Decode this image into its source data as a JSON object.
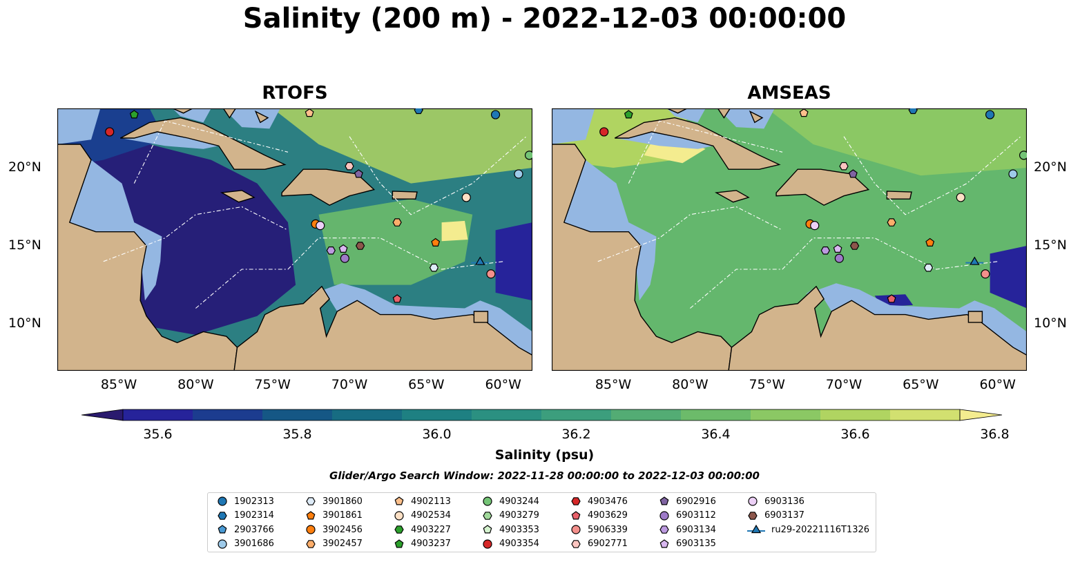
{
  "title": "Salinity (200 m) - 2022-12-03 00:00:00",
  "panels": [
    {
      "title": "RTOFS",
      "mode": "rtofs"
    },
    {
      "title": "AMSEAS",
      "mode": "amseas"
    }
  ],
  "longitude_ticks": [
    "85°W",
    "80°W",
    "75°W",
    "70°W",
    "65°W",
    "60°W"
  ],
  "latitude_ticks": [
    "20°N",
    "15°N",
    "10°N"
  ],
  "colorbar": {
    "label": "Salinity (psu)",
    "min": 35.5,
    "max": 36.9,
    "ticks": [
      "35.6",
      "35.8",
      "36.0",
      "36.2",
      "36.4",
      "36.6",
      "36.8"
    ],
    "colors": [
      "#2a1a6e",
      "#26239a",
      "#1c3c8f",
      "#155785",
      "#176c82",
      "#1e8082",
      "#2b9081",
      "#3c9e7d",
      "#53ac74",
      "#6cbb6a",
      "#8bc864",
      "#b0d461",
      "#d2e070",
      "#f4ec8f"
    ]
  },
  "search_window": "Glider/Argo Search Window: 2022-11-28 00:00:00 to 2022-12-03 00:00:00",
  "legend": [
    {
      "label": "1902313",
      "marker": "circle",
      "color": "#1f77b4"
    },
    {
      "label": "1902314",
      "marker": "hexagon",
      "color": "#1f77b4"
    },
    {
      "label": "2903766",
      "marker": "pentagon",
      "color": "#4a9ad4"
    },
    {
      "label": "3901686",
      "marker": "circle",
      "color": "#9ecae9"
    },
    {
      "label": "3901860",
      "marker": "hexagon",
      "color": "#deebf7"
    },
    {
      "label": "3901861",
      "marker": "pentagon",
      "color": "#ff7f0e"
    },
    {
      "label": "3902456",
      "marker": "circle",
      "color": "#ff7f0e"
    },
    {
      "label": "3902457",
      "marker": "hexagon",
      "color": "#fdae6b"
    },
    {
      "label": "4902113",
      "marker": "pentagon",
      "color": "#fdc08c"
    },
    {
      "label": "4902534",
      "marker": "circle",
      "color": "#fde0c5"
    },
    {
      "label": "4903227",
      "marker": "hexagon",
      "color": "#2ca02c"
    },
    {
      "label": "4903237",
      "marker": "pentagon",
      "color": "#2ca02c"
    },
    {
      "label": "4903244",
      "marker": "circle",
      "color": "#74c476"
    },
    {
      "label": "4903279",
      "marker": "hexagon",
      "color": "#a1d99b"
    },
    {
      "label": "4903353",
      "marker": "pentagon",
      "color": "#d5f3cf"
    },
    {
      "label": "4903354",
      "marker": "circle",
      "color": "#d62728"
    },
    {
      "label": "4903476",
      "marker": "hexagon",
      "color": "#d62728"
    },
    {
      "label": "4903629",
      "marker": "pentagon",
      "color": "#e8616a"
    },
    {
      "label": "5906339",
      "marker": "circle",
      "color": "#f4908c"
    },
    {
      "label": "6902771",
      "marker": "hexagon",
      "color": "#fcc5c0"
    },
    {
      "label": "6902916",
      "marker": "pentagon",
      "color": "#8064a2"
    },
    {
      "label": "6903112",
      "marker": "circle",
      "color": "#9e7ac8"
    },
    {
      "label": "6903134",
      "marker": "hexagon",
      "color": "#bc9ae0"
    },
    {
      "label": "6903135",
      "marker": "pentagon",
      "color": "#d9b8f0"
    },
    {
      "label": "6903136",
      "marker": "circle",
      "color": "#ecd0f6"
    },
    {
      "label": "6903137",
      "marker": "hexagon",
      "color": "#8c564b"
    },
    {
      "label": "ru29-20221116T1326",
      "marker": "triangle-line",
      "color": "#1f77b4"
    }
  ],
  "floats": [
    {
      "id": "1902313",
      "lon": -60.5,
      "lat": 23.4
    },
    {
      "id": "1902314",
      "lon": -65.5,
      "lat": 23.7
    },
    {
      "id": "3901686",
      "lon": -59.0,
      "lat": 19.6
    },
    {
      "id": "3901860",
      "lon": -64.5,
      "lat": 13.6
    },
    {
      "id": "3901861",
      "lon": -64.4,
      "lat": 15.2
    },
    {
      "id": "3902456",
      "lon": -72.2,
      "lat": 16.4
    },
    {
      "id": "3902457",
      "lon": -66.9,
      "lat": 16.5
    },
    {
      "id": "4902113",
      "lon": -72.6,
      "lat": 23.5
    },
    {
      "id": "4902534",
      "lon": -62.4,
      "lat": 18.1
    },
    {
      "id": "4903237",
      "lon": -84.0,
      "lat": 23.4
    },
    {
      "id": "4903244",
      "lon": -58.3,
      "lat": 20.8
    },
    {
      "id": "4903354",
      "lon": -85.6,
      "lat": 22.3
    },
    {
      "id": "4903629",
      "lon": -66.9,
      "lat": 11.6
    },
    {
      "id": "5906339",
      "lon": -60.8,
      "lat": 13.2
    },
    {
      "id": "6902771",
      "lon": -70.0,
      "lat": 20.1
    },
    {
      "id": "6902916",
      "lon": -69.4,
      "lat": 19.6
    },
    {
      "id": "6903112",
      "lon": -70.3,
      "lat": 14.2
    },
    {
      "id": "6903134",
      "lon": -71.2,
      "lat": 14.7
    },
    {
      "id": "6903135",
      "lon": -70.4,
      "lat": 14.8
    },
    {
      "id": "6903136",
      "lon": -71.9,
      "lat": 16.3
    },
    {
      "id": "6903137",
      "lon": -69.3,
      "lat": 15.0
    },
    {
      "id": "ru29-20221116T1326",
      "lon": -61.5,
      "lat": 14.0
    }
  ]
}
